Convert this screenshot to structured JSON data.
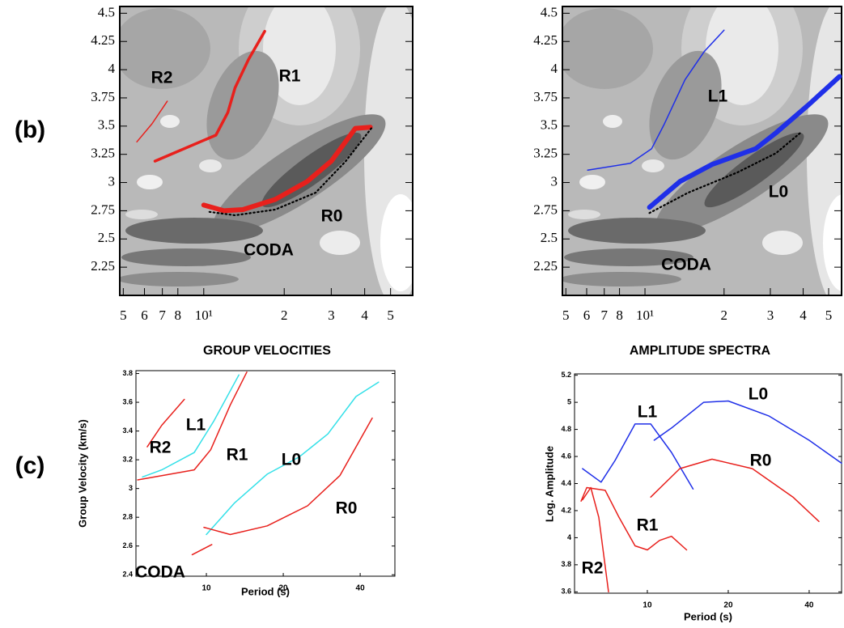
{
  "panel_labels": [
    "(b)",
    "(c)"
  ],
  "chart_data": [
    {
      "type": "line",
      "x_scale": "log",
      "xlim": [
        4.85,
        60.5
      ],
      "ylim": [
        2.0,
        4.56
      ],
      "xticks": [
        5,
        6,
        7,
        8,
        {
          "value": 10,
          "label": "10¹"
        },
        {
          "value": 20,
          "label": "2"
        },
        {
          "value": 30,
          "label": "3"
        },
        {
          "value": 40,
          "label": "4"
        },
        {
          "value": 50,
          "label": "5"
        }
      ],
      "yticks": [
        2.25,
        2.5,
        2.75,
        3,
        3.25,
        3.5,
        3.75,
        4,
        4.25,
        4.5
      ],
      "annotations": [
        "R2",
        "R1",
        "R0",
        "CODA"
      ],
      "series": [
        {
          "color": "#e8201c",
          "style": "thin",
          "x": [
            5.62,
            6.4,
            7.3
          ],
          "values": [
            3.36,
            3.52,
            3.72
          ]
        },
        {
          "color": "#e8201c",
          "style": "medium",
          "x": [
            6.57,
            11.1,
            12.3,
            13.1,
            14.7,
            16.9
          ],
          "values": [
            3.19,
            3.42,
            3.62,
            3.84,
            4.09,
            4.34
          ]
        },
        {
          "color": "#e8201c",
          "style": "thick",
          "x": [
            10,
            11.9,
            14,
            18.5,
            24.4,
            30,
            36.9,
            42
          ],
          "values": [
            2.8,
            2.75,
            2.76,
            2.85,
            3.01,
            3.19,
            3.48,
            3.49
          ]
        },
        {
          "color": "#000000",
          "style": "dotted",
          "x": [
            10.5,
            13.1,
            18.5,
            26.2,
            34,
            43
          ],
          "values": [
            2.74,
            2.71,
            2.76,
            2.91,
            3.19,
            3.5
          ]
        }
      ]
    },
    {
      "type": "line",
      "x_scale": "log",
      "xlim": [
        4.85,
        56
      ],
      "ylim": [
        2.0,
        4.56
      ],
      "xticks": [
        5,
        6,
        7,
        8,
        {
          "value": 10,
          "label": "10¹"
        },
        {
          "value": 20,
          "label": "2"
        },
        {
          "value": 30,
          "label": "3"
        },
        {
          "value": 40,
          "label": "4"
        },
        {
          "value": 50,
          "label": "5"
        }
      ],
      "yticks": [
        2.25,
        2.5,
        2.75,
        3,
        3.25,
        3.5,
        3.75,
        4,
        4.25,
        4.5
      ],
      "annotations": [
        "L1",
        "L0",
        "CODA"
      ],
      "series": [
        {
          "color": "#1f2fe8",
          "style": "thin",
          "x": [
            6.05,
            8.8,
            10.6,
            11.8,
            14.2,
            16.8,
            20
          ],
          "values": [
            3.11,
            3.17,
            3.3,
            3.51,
            3.91,
            4.16,
            4.35
          ]
        },
        {
          "color": "#1f2fe8",
          "style": "thick",
          "x": [
            10.4,
            13.6,
            18,
            26.4,
            31.5,
            42,
            55
          ],
          "values": [
            2.78,
            3.01,
            3.16,
            3.3,
            3.44,
            3.69,
            3.94
          ]
        },
        {
          "color": "#000000",
          "style": "dotted",
          "x": [
            10.4,
            14.6,
            22.5,
            31.5,
            39
          ],
          "values": [
            2.73,
            2.91,
            3.09,
            3.26,
            3.44
          ]
        }
      ]
    },
    {
      "type": "line",
      "title": "GROUP VELOCITIES",
      "x_label": "Period (s)",
      "y_label": "Group Velocity (km/s)",
      "x_scale": "log",
      "xlim": [
        5.3,
        54.7
      ],
      "ylim": [
        2.39,
        3.82
      ],
      "xticks": [
        10,
        20,
        40
      ],
      "yticks": [
        2.4,
        2.6,
        2.8,
        3,
        3.2,
        3.4,
        3.6,
        3.8
      ],
      "annotations": [
        "R2",
        "L1",
        "R1",
        "L0",
        "R0",
        "CODA"
      ],
      "series": [
        {
          "color": "#e8201c",
          "style": "line",
          "x": [
            5.87,
            6.69,
            8.2
          ],
          "values": [
            3.29,
            3.44,
            3.62
          ]
        },
        {
          "color": "#33e0e8",
          "style": "line",
          "x": [
            5.62,
            6.69,
            8.96,
            10.7,
            13.4
          ],
          "values": [
            3.08,
            3.13,
            3.25,
            3.47,
            3.79
          ]
        },
        {
          "color": "#e8201c",
          "style": "line",
          "x": [
            5.38,
            6.69,
            8.96,
            10.4,
            12.4,
            14.4
          ],
          "values": [
            3.06,
            3.09,
            3.13,
            3.27,
            3.58,
            3.81
          ]
        },
        {
          "color": "#33e0e8",
          "style": "line",
          "x": [
            10,
            12.9,
            17.3,
            23.1,
            29.9,
            38.5,
            47.2
          ],
          "values": [
            2.68,
            2.9,
            3.1,
            3.22,
            3.38,
            3.64,
            3.74
          ]
        },
        {
          "color": "#e8201c",
          "style": "line",
          "x": [
            9.78,
            12.4,
            17.3,
            24.9,
            33.3,
            44.6
          ],
          "values": [
            2.73,
            2.68,
            2.74,
            2.88,
            3.09,
            3.49
          ]
        },
        {
          "color": "#e8201c",
          "style": "line",
          "x": [
            8.8,
            10.5
          ],
          "values": [
            2.54,
            2.61
          ]
        }
      ]
    },
    {
      "type": "line",
      "title": "AMPLITUDE SPECTRA",
      "x_label": "Period (s)",
      "y_label": "Log. Amplitude",
      "x_scale": "log",
      "xlim": [
        5.36,
        52.8
      ],
      "ylim": [
        3.59,
        5.21
      ],
      "xticks": [
        10,
        20,
        40
      ],
      "yticks": [
        3.6,
        3.8,
        4,
        4.2,
        4.4,
        4.6,
        4.8,
        5,
        5.2
      ],
      "annotations": [
        "L1",
        "L0",
        "R0",
        "R1",
        "R2"
      ],
      "series": [
        {
          "color": "#1f2fe8",
          "style": "line",
          "x": [
            5.74,
            6.73,
            7.58,
            9.0,
            10.3,
            12.3,
            14.8
          ],
          "values": [
            4.51,
            4.41,
            4.57,
            4.84,
            4.84,
            4.63,
            4.36
          ]
        },
        {
          "color": "#1f2fe8",
          "style": "line",
          "x": [
            10.6,
            12.3,
            16.2,
            20,
            28.3,
            40,
            52.8
          ],
          "values": [
            4.72,
            4.81,
            5.0,
            5.01,
            4.9,
            4.72,
            4.55
          ]
        },
        {
          "color": "#e8201c",
          "style": "line",
          "x": [
            10.3,
            13.2,
            17.4,
            24.6,
            34.8,
            43.5
          ],
          "values": [
            4.3,
            4.51,
            4.58,
            4.51,
            4.3,
            4.12
          ]
        },
        {
          "color": "#e8201c",
          "style": "line",
          "x": [
            5.67,
            5.95,
            6.97,
            7.85,
            9.0,
            10,
            11.1,
            12.3,
            14.0
          ],
          "values": [
            4.27,
            4.37,
            4.35,
            4.15,
            3.94,
            3.91,
            3.98,
            4.01,
            3.91
          ]
        },
        {
          "color": "#e8201c",
          "style": "line",
          "x": [
            5.74,
            6.16,
            6.6,
            7.17
          ],
          "values": [
            4.28,
            4.37,
            4.15,
            3.6
          ]
        }
      ]
    }
  ]
}
